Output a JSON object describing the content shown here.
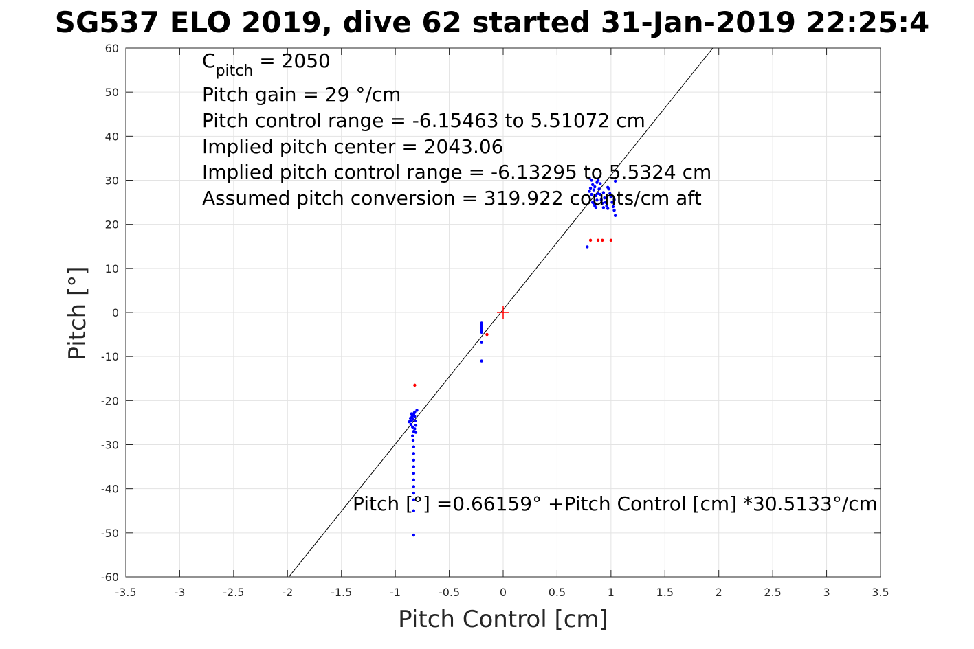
{
  "chart_data": {
    "type": "scatter",
    "title": "SG537 ELO 2019, dive 62 started 31-Jan-2019 22:25:4",
    "xlabel": "Pitch Control [cm]",
    "ylabel": "Pitch [°]",
    "xlim": [
      -3.5,
      3.5
    ],
    "ylim": [
      -60,
      60
    ],
    "xticks": [
      -3.5,
      -3,
      -2.5,
      -2,
      -1.5,
      -1,
      -0.5,
      0,
      0.5,
      1,
      1.5,
      2,
      2.5,
      3,
      3.5
    ],
    "yticks": [
      -60,
      -50,
      -40,
      -30,
      -20,
      -10,
      0,
      10,
      20,
      30,
      40,
      50,
      60
    ],
    "grid": true,
    "annotations": {
      "c_pitch_main": "C",
      "c_pitch_sub": "pitch",
      "c_pitch_value": " = 2050",
      "pitch_gain": "Pitch gain = 29 °/cm",
      "pitch_control_range": "Pitch control range = -6.15463 to 5.51072 cm",
      "implied_center": "Implied pitch center = 2043.06",
      "implied_range": "Implied pitch control range = -6.13295 to 5.5324 cm",
      "assumed_conversion": "Assumed pitch conversion = 319.922 counts/cm aft",
      "fit_equation": "Pitch [°] =0.66159° +Pitch Control [cm] *30.5133°/cm"
    },
    "fit_line": {
      "intercept": 0.66159,
      "slope": 30.5133,
      "color": "#000000"
    },
    "center_marker": {
      "x": 0,
      "y": 0,
      "color": "#ff0000"
    },
    "series": [
      {
        "color": "#0000ff",
        "points": [
          [
            -0.86,
            -24.0
          ],
          [
            -0.85,
            -24.6
          ],
          [
            -0.855,
            -25.4
          ],
          [
            -0.845,
            -23.6
          ],
          [
            -0.84,
            -26.0
          ],
          [
            -0.835,
            -24.2
          ],
          [
            -0.83,
            -23.2
          ],
          [
            -0.825,
            -22.8
          ],
          [
            -0.82,
            -23.6
          ],
          [
            -0.815,
            -24.6
          ],
          [
            -0.81,
            -25.6
          ],
          [
            -0.83,
            -27.0
          ],
          [
            -0.84,
            -28.0
          ],
          [
            -0.835,
            -29.0
          ],
          [
            -0.83,
            -30.5
          ],
          [
            -0.83,
            -32.0
          ],
          [
            -0.83,
            -33.5
          ],
          [
            -0.83,
            -35.0
          ],
          [
            -0.83,
            -36.5
          ],
          [
            -0.83,
            -38.0
          ],
          [
            -0.83,
            -39.5
          ],
          [
            -0.83,
            -41.0
          ],
          [
            -0.83,
            -42.5
          ],
          [
            -0.83,
            -45.0
          ],
          [
            -0.83,
            -50.5
          ],
          [
            -0.8,
            -22.2
          ],
          [
            -0.82,
            -22.6
          ],
          [
            -0.85,
            -23.0
          ],
          [
            -0.87,
            -24.8
          ],
          [
            -0.81,
            -27.2
          ],
          [
            -0.82,
            -26.4
          ],
          [
            -0.2,
            -2.4
          ],
          [
            -0.2,
            -2.9
          ],
          [
            -0.2,
            -3.3
          ],
          [
            -0.2,
            -3.7
          ],
          [
            -0.2,
            -4.1
          ],
          [
            -0.2,
            -4.5
          ],
          [
            -0.2,
            -6.8
          ],
          [
            -0.2,
            -11.0
          ],
          [
            0.78,
            14.9
          ],
          [
            0.8,
            27.5
          ],
          [
            0.81,
            28.2
          ],
          [
            0.82,
            26.8
          ],
          [
            0.83,
            29.0
          ],
          [
            0.84,
            27.8
          ],
          [
            0.85,
            28.5
          ],
          [
            0.86,
            26.5
          ],
          [
            0.87,
            25.5
          ],
          [
            0.88,
            27.0
          ],
          [
            0.82,
            30.0
          ],
          [
            0.83,
            25.0
          ],
          [
            0.85,
            24.2
          ],
          [
            0.87,
            29.5
          ],
          [
            0.89,
            28.0
          ],
          [
            0.9,
            26.8
          ],
          [
            0.91,
            25.6
          ],
          [
            0.92,
            24.8
          ],
          [
            0.93,
            27.2
          ],
          [
            0.94,
            26.0
          ],
          [
            0.95,
            25.0
          ],
          [
            0.96,
            24.2
          ],
          [
            0.97,
            23.6
          ],
          [
            0.98,
            28.0
          ],
          [
            0.99,
            27.0
          ],
          [
            1.0,
            26.2
          ],
          [
            1.01,
            25.0
          ],
          [
            1.02,
            24.0
          ],
          [
            1.03,
            23.2
          ],
          [
            1.04,
            22.0
          ],
          [
            1.04,
            29.8
          ],
          [
            0.8,
            30.5
          ],
          [
            0.9,
            29.2
          ],
          [
            0.86,
            23.8
          ],
          [
            0.84,
            24.8
          ],
          [
            0.93,
            23.8
          ],
          [
            0.97,
            28.4
          ],
          [
            0.88,
            30.0
          ],
          [
            1.03,
            25.6
          ]
        ]
      },
      {
        "color": "#ff0000",
        "points": [
          [
            -0.82,
            -16.5
          ],
          [
            -0.15,
            -5.0
          ],
          [
            0.81,
            16.4
          ],
          [
            0.88,
            16.4
          ],
          [
            0.92,
            16.4
          ],
          [
            1.0,
            16.4
          ]
        ]
      }
    ]
  }
}
